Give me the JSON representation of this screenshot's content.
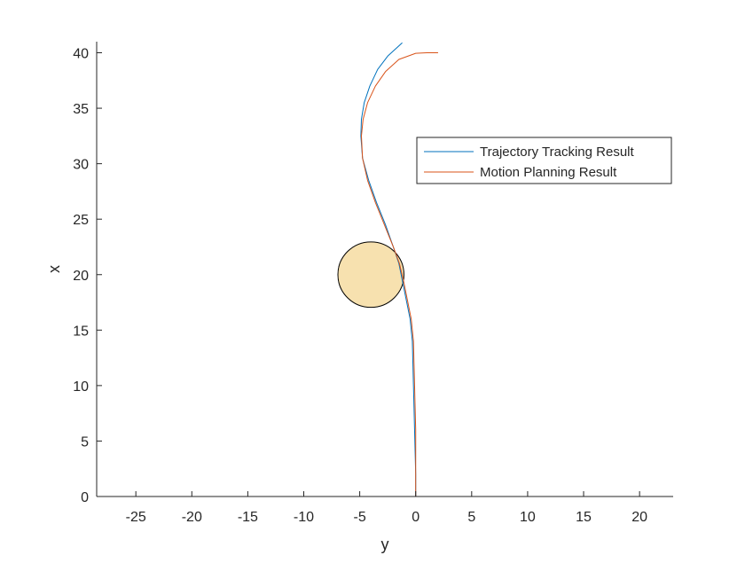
{
  "chart_data": {
    "type": "line",
    "title": "",
    "xlabel": "y",
    "ylabel": "x",
    "xlim": [
      -28.5,
      23
    ],
    "ylim": [
      0,
      41
    ],
    "xticks": [
      -25,
      -20,
      -15,
      -10,
      -5,
      0,
      5,
      10,
      15,
      20
    ],
    "xtick_labels": [
      "-25",
      "-20",
      "-15",
      "-10",
      "-5",
      "0",
      "5",
      "10",
      "15",
      "20"
    ],
    "yticks": [
      0,
      5,
      10,
      15,
      20,
      25,
      30,
      35,
      40
    ],
    "ytick_labels": [
      "0",
      "5",
      "10",
      "15",
      "20",
      "25",
      "30",
      "35",
      "40"
    ],
    "grid": false,
    "legend_location": "upper-right",
    "series": [
      {
        "name": "Trajectory Tracking Result",
        "color": "#0072BD",
        "points": [
          [
            0.0,
            0.0
          ],
          [
            0.0,
            2.0
          ],
          [
            -0.05,
            4.0
          ],
          [
            -0.1,
            6.0
          ],
          [
            -0.15,
            8.0
          ],
          [
            -0.2,
            10.0
          ],
          [
            -0.25,
            12.0
          ],
          [
            -0.3,
            14.0
          ],
          [
            -0.5,
            16.0
          ],
          [
            -0.9,
            18.0
          ],
          [
            -1.2,
            19.5
          ],
          [
            -1.5,
            21.0
          ],
          [
            -2.0,
            22.5
          ],
          [
            -2.7,
            24.5
          ],
          [
            -3.5,
            26.5
          ],
          [
            -4.2,
            28.5
          ],
          [
            -4.75,
            30.5
          ],
          [
            -4.9,
            32.5
          ],
          [
            -4.85,
            34.0
          ],
          [
            -4.6,
            35.5
          ],
          [
            -4.1,
            37.0
          ],
          [
            -3.4,
            38.5
          ],
          [
            -2.5,
            39.7
          ],
          [
            -1.2,
            40.9
          ]
        ]
      },
      {
        "name": "Motion Planning Result",
        "color": "#D95319",
        "points": [
          [
            0.0,
            0.0
          ],
          [
            0.0,
            2.0
          ],
          [
            0.0,
            4.0
          ],
          [
            0.0,
            6.0
          ],
          [
            -0.05,
            8.0
          ],
          [
            -0.1,
            10.0
          ],
          [
            -0.15,
            12.0
          ],
          [
            -0.2,
            14.0
          ],
          [
            -0.4,
            16.0
          ],
          [
            -0.8,
            18.0
          ],
          [
            -1.1,
            19.5
          ],
          [
            -1.45,
            21.0
          ],
          [
            -2.0,
            22.5
          ],
          [
            -2.8,
            24.5
          ],
          [
            -3.6,
            26.5
          ],
          [
            -4.3,
            28.5
          ],
          [
            -4.75,
            30.5
          ],
          [
            -4.85,
            32.5
          ],
          [
            -4.7,
            34.0
          ],
          [
            -4.3,
            35.5
          ],
          [
            -3.6,
            37.0
          ],
          [
            -2.7,
            38.3
          ],
          [
            -1.5,
            39.4
          ],
          [
            0.0,
            39.95
          ],
          [
            1.0,
            40.0
          ],
          [
            2.0,
            40.0
          ]
        ]
      }
    ],
    "obstacle": {
      "center": [
        -4.0,
        20.0
      ],
      "radius": 2.95,
      "fill": "#F7E1AF",
      "edge": "#000000"
    }
  }
}
